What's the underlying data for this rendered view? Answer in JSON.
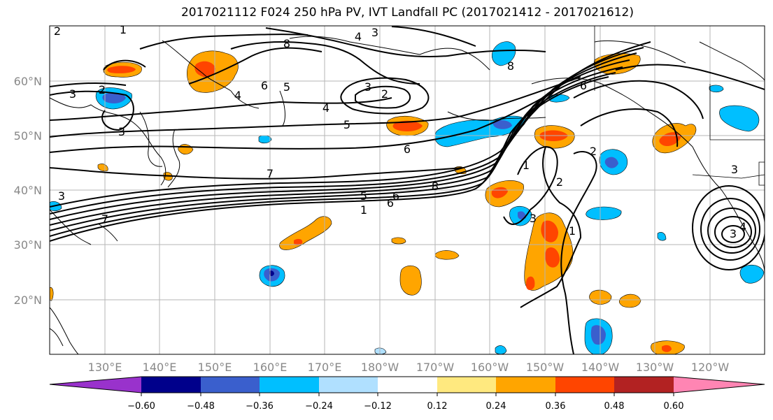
{
  "title": "2017021112 F024 250 hPa PV, IVT Landfall PC (2017021412 - 2017021612)",
  "map": {
    "lat_labels": [
      "60°N",
      "50°N",
      "40°N",
      "30°N",
      "20°N"
    ],
    "lon_labels": [
      "130°E",
      "140°E",
      "150°E",
      "160°E",
      "170°E",
      "180°W",
      "170°W",
      "160°W",
      "150°W",
      "140°W",
      "130°W",
      "120°W"
    ],
    "contour_labels": [
      "2",
      "1",
      "3",
      "2",
      "3",
      "3",
      "8",
      "4",
      "3",
      "4",
      "6",
      "5",
      "3",
      "2",
      "4",
      "5",
      "6",
      "7",
      "8",
      "6",
      "7",
      "5",
      "6",
      "1",
      "3",
      "5",
      "1",
      "2",
      "2",
      "1",
      "3",
      "4",
      "3",
      "8",
      "6"
    ]
  },
  "colorbar": {
    "tick_labels": [
      "−0.60",
      "−0.48",
      "−0.36",
      "−0.24",
      "−0.12",
      "0.12",
      "0.24",
      "0.36",
      "0.48",
      "0.60"
    ],
    "colors": [
      "#9932cc",
      "#00008b",
      "#3a5fcd",
      "#00bfff",
      "#b0e0ff",
      "#ffffff",
      "#ffe97f",
      "#ffa500",
      "#ff4500",
      "#b22222",
      "#ff85b3"
    ]
  }
}
